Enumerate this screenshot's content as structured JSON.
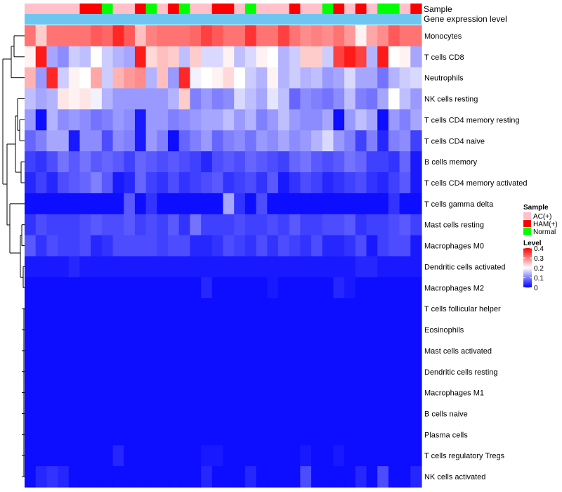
{
  "chart_data": {
    "type": "heatmap",
    "title": "",
    "annotations": {
      "sample_label": "Sample",
      "expression_label": "Gene expression level",
      "sample_groups": [
        "AC(+)",
        "AC(+)",
        "AC(+)",
        "AC(+)",
        "AC(+)",
        "HAM(+)",
        "HAM(+)",
        "Normal",
        "AC(+)",
        "AC(+)",
        "HAM(+)",
        "Normal",
        "AC(+)",
        "HAM(+)",
        "Normal",
        "AC(+)",
        "AC(+)",
        "HAM(+)",
        "HAM(+)",
        "AC(+)",
        "Normal",
        "AC(+)",
        "AC(+)",
        "AC(+)",
        "HAM(+)",
        "AC(+)",
        "AC(+)",
        "Normal",
        "HAM(+)",
        "AC(+)",
        "HAM(+)",
        "AC(+)",
        "Normal",
        "Normal",
        "AC(+)",
        "HAM(+)"
      ]
    },
    "rows": [
      "Monocytes",
      "T cells CD8",
      "Neutrophils",
      "NK cells resting",
      "T cells CD4 memory resting",
      "T cells CD4 naive",
      "B cells memory",
      "T cells CD4 memory activated",
      "T cells gamma delta",
      "Mast cells resting",
      "Macrophages M0",
      "Dendritic cells activated",
      "Macrophages M2",
      "T cells follicular helper",
      "Eosinophils",
      "Mast cells activated",
      "Dendritic cells resting",
      "Macrophages M1",
      "B cells naive",
      "Plasma cells",
      "T cells regulatory  Tregs",
      "NK cells activated"
    ],
    "values": [
      [
        0.31,
        0.24,
        0.31,
        0.31,
        0.31,
        0.31,
        0.33,
        0.32,
        0.37,
        0.33,
        0.25,
        0.3,
        0.31,
        0.31,
        0.31,
        0.32,
        0.35,
        0.33,
        0.31,
        0.31,
        0.36,
        0.31,
        0.31,
        0.35,
        0.31,
        0.29,
        0.3,
        0.29,
        0.31,
        0.28,
        0.21,
        0.27,
        0.29,
        0.33,
        0.31,
        0.31
      ],
      [
        0.21,
        0.38,
        0.13,
        0.11,
        0.16,
        0.15,
        0.2,
        0.16,
        0.14,
        0.13,
        0.38,
        0.23,
        0.25,
        0.24,
        0.15,
        0.24,
        0.17,
        0.17,
        0.21,
        0.15,
        0.17,
        0.21,
        0.2,
        0.14,
        0.16,
        0.24,
        0.24,
        0.16,
        0.35,
        0.38,
        0.35,
        0.14,
        0.38,
        0.2,
        0.21,
        0.13
      ],
      [
        0.26,
        0.12,
        0.37,
        0.16,
        0.21,
        0.2,
        0.27,
        0.16,
        0.26,
        0.28,
        0.29,
        0.14,
        0.25,
        0.12,
        0.37,
        0.19,
        0.2,
        0.21,
        0.23,
        0.2,
        0.16,
        0.14,
        0.21,
        0.14,
        0.16,
        0.14,
        0.15,
        0.12,
        0.13,
        0.17,
        0.13,
        0.13,
        0.09,
        0.14,
        0.16,
        0.17
      ],
      [
        0.15,
        0.13,
        0.14,
        0.22,
        0.21,
        0.22,
        0.19,
        0.14,
        0.12,
        0.12,
        0.12,
        0.12,
        0.12,
        0.14,
        0.24,
        0.1,
        0.12,
        0.1,
        0.11,
        0.17,
        0.15,
        0.13,
        0.18,
        0.15,
        0.08,
        0.11,
        0.1,
        0.09,
        0.11,
        0.15,
        0.1,
        0.09,
        0.13,
        0.2,
        0.15,
        0.12
      ],
      [
        0.12,
        0.01,
        0.14,
        0.11,
        0.12,
        0.11,
        0.09,
        0.1,
        0.12,
        0.11,
        0.02,
        0.12,
        0.12,
        0.1,
        0.11,
        0.12,
        0.13,
        0.13,
        0.15,
        0.12,
        0.14,
        0.1,
        0.12,
        0.15,
        0.12,
        0.11,
        0.11,
        0.13,
        0.01,
        0.12,
        0.15,
        0.13,
        0.01,
        0.12,
        0.1,
        0.13
      ],
      [
        0.08,
        0.1,
        0.13,
        0.13,
        0.02,
        0.11,
        0.11,
        0.06,
        0.11,
        0.1,
        0.02,
        0.12,
        0.1,
        0.01,
        0.08,
        0.1,
        0.12,
        0.08,
        0.1,
        0.11,
        0.09,
        0.12,
        0.11,
        0.13,
        0.11,
        0.12,
        0.14,
        0.17,
        0.12,
        0.1,
        0.05,
        0.1,
        0.03,
        0.1,
        0.11,
        0.05
      ],
      [
        0.05,
        0.04,
        0.06,
        0.09,
        0.07,
        0.09,
        0.07,
        0.08,
        0.07,
        0.05,
        0.08,
        0.07,
        0.06,
        0.07,
        0.06,
        0.05,
        0.03,
        0.06,
        0.07,
        0.06,
        0.08,
        0.07,
        0.06,
        0.05,
        0.08,
        0.09,
        0.07,
        0.06,
        0.07,
        0.09,
        0.08,
        0.05,
        0.05,
        0.04,
        0.08,
        0.02
      ],
      [
        0.03,
        0.05,
        0.03,
        0.06,
        0.07,
        0.08,
        0.1,
        0.07,
        0.02,
        0.03,
        0.08,
        0.05,
        0.04,
        0.06,
        0.04,
        0.05,
        0.06,
        0.07,
        0.04,
        0.05,
        0.06,
        0.04,
        0.07,
        0.02,
        0.04,
        0.06,
        0.05,
        0.03,
        0.04,
        0.05,
        0.06,
        0.04,
        0.03,
        0.05,
        0.07,
        0.02
      ],
      [
        0.01,
        0.01,
        0.01,
        0.01,
        0.01,
        0.01,
        0.01,
        0.01,
        0.01,
        0.07,
        0.01,
        0.04,
        0.01,
        0.01,
        0.01,
        0.01,
        0.01,
        0.01,
        0.13,
        0.04,
        0.01,
        0.06,
        0.01,
        0.01,
        0.01,
        0.01,
        0.01,
        0.01,
        0.01,
        0.01,
        0.01,
        0.01,
        0.01,
        0.04,
        0.01,
        0.01
      ],
      [
        0.04,
        0.06,
        0.05,
        0.05,
        0.05,
        0.06,
        0.07,
        0.06,
        0.06,
        0.07,
        0.05,
        0.06,
        0.05,
        0.07,
        0.04,
        0.09,
        0.05,
        0.05,
        0.05,
        0.06,
        0.05,
        0.05,
        0.06,
        0.05,
        0.07,
        0.05,
        0.05,
        0.06,
        0.06,
        0.07,
        0.04,
        0.05,
        0.05,
        0.06,
        0.07,
        0.05
      ],
      [
        0.07,
        0.04,
        0.06,
        0.05,
        0.05,
        0.06,
        0.03,
        0.04,
        0.06,
        0.06,
        0.06,
        0.06,
        0.05,
        0.06,
        0.06,
        0.03,
        0.03,
        0.04,
        0.06,
        0.05,
        0.04,
        0.06,
        0.04,
        0.06,
        0.05,
        0.04,
        0.06,
        0.03,
        0.03,
        0.04,
        0.06,
        0.02,
        0.05,
        0.06,
        0.06,
        0.02
      ],
      [
        0.02,
        0.02,
        0.02,
        0.02,
        0.03,
        0.02,
        0.02,
        0.02,
        0.02,
        0.02,
        0.02,
        0.02,
        0.02,
        0.02,
        0.02,
        0.02,
        0.02,
        0.02,
        0.02,
        0.02,
        0.02,
        0.02,
        0.02,
        0.02,
        0.02,
        0.02,
        0.02,
        0.02,
        0.02,
        0.02,
        0.03,
        0.03,
        0.02,
        0.02,
        0.02,
        0.02
      ],
      [
        0.01,
        0.01,
        0.01,
        0.01,
        0.01,
        0.01,
        0.01,
        0.01,
        0.01,
        0.01,
        0.01,
        0.01,
        0.01,
        0.01,
        0.01,
        0.01,
        0.03,
        0.01,
        0.01,
        0.01,
        0.01,
        0.01,
        0.02,
        0.01,
        0.01,
        0.01,
        0.01,
        0.01,
        0.03,
        0.02,
        0.01,
        0.01,
        0.01,
        0.01,
        0.01,
        0.01
      ],
      [
        0.01,
        0.01,
        0.01,
        0.01,
        0.01,
        0.01,
        0.01,
        0.01,
        0.01,
        0.01,
        0.01,
        0.01,
        0.01,
        0.01,
        0.01,
        0.01,
        0.01,
        0.01,
        0.01,
        0.01,
        0.01,
        0.01,
        0.01,
        0.01,
        0.01,
        0.01,
        0.01,
        0.01,
        0.01,
        0.01,
        0.01,
        0.01,
        0.01,
        0.01,
        0.01,
        0.01
      ],
      [
        0.01,
        0.01,
        0.01,
        0.01,
        0.01,
        0.01,
        0.01,
        0.01,
        0.01,
        0.01,
        0.01,
        0.01,
        0.01,
        0.01,
        0.01,
        0.01,
        0.01,
        0.01,
        0.01,
        0.01,
        0.01,
        0.01,
        0.01,
        0.01,
        0.01,
        0.01,
        0.01,
        0.01,
        0.01,
        0.01,
        0.01,
        0.01,
        0.01,
        0.01,
        0.01,
        0.01
      ],
      [
        0.01,
        0.01,
        0.01,
        0.01,
        0.01,
        0.01,
        0.01,
        0.01,
        0.01,
        0.01,
        0.01,
        0.01,
        0.01,
        0.01,
        0.01,
        0.01,
        0.01,
        0.01,
        0.01,
        0.01,
        0.01,
        0.01,
        0.01,
        0.01,
        0.01,
        0.01,
        0.01,
        0.01,
        0.01,
        0.01,
        0.01,
        0.01,
        0.01,
        0.01,
        0.01,
        0.01
      ],
      [
        0.01,
        0.01,
        0.01,
        0.01,
        0.01,
        0.01,
        0.01,
        0.01,
        0.01,
        0.01,
        0.01,
        0.01,
        0.01,
        0.01,
        0.01,
        0.01,
        0.01,
        0.01,
        0.01,
        0.01,
        0.01,
        0.01,
        0.01,
        0.01,
        0.01,
        0.01,
        0.01,
        0.01,
        0.01,
        0.01,
        0.01,
        0.01,
        0.01,
        0.01,
        0.01,
        0.01
      ],
      [
        0.01,
        0.01,
        0.01,
        0.01,
        0.01,
        0.01,
        0.01,
        0.01,
        0.01,
        0.01,
        0.01,
        0.01,
        0.01,
        0.01,
        0.01,
        0.01,
        0.01,
        0.01,
        0.01,
        0.01,
        0.01,
        0.01,
        0.01,
        0.01,
        0.01,
        0.01,
        0.01,
        0.01,
        0.01,
        0.01,
        0.01,
        0.01,
        0.01,
        0.01,
        0.01,
        0.01
      ],
      [
        0.01,
        0.01,
        0.01,
        0.01,
        0.01,
        0.01,
        0.01,
        0.01,
        0.01,
        0.01,
        0.01,
        0.01,
        0.01,
        0.01,
        0.01,
        0.01,
        0.01,
        0.01,
        0.01,
        0.01,
        0.01,
        0.01,
        0.01,
        0.01,
        0.01,
        0.01,
        0.01,
        0.01,
        0.01,
        0.01,
        0.01,
        0.01,
        0.01,
        0.01,
        0.01,
        0.01
      ],
      [
        0.01,
        0.01,
        0.01,
        0.01,
        0.01,
        0.01,
        0.01,
        0.01,
        0.01,
        0.01,
        0.01,
        0.01,
        0.01,
        0.01,
        0.01,
        0.01,
        0.01,
        0.01,
        0.01,
        0.01,
        0.01,
        0.01,
        0.01,
        0.01,
        0.01,
        0.01,
        0.01,
        0.01,
        0.01,
        0.01,
        0.01,
        0.01,
        0.01,
        0.01,
        0.01,
        0.01
      ],
      [
        0.01,
        0.01,
        0.01,
        0.01,
        0.01,
        0.01,
        0.01,
        0.01,
        0.03,
        0.01,
        0.01,
        0.01,
        0.01,
        0.01,
        0.01,
        0.01,
        0.02,
        0.02,
        0.01,
        0.01,
        0.01,
        0.01,
        0.01,
        0.01,
        0.01,
        0.02,
        0.01,
        0.01,
        0.02,
        0.01,
        0.01,
        0.01,
        0.01,
        0.01,
        0.01,
        0.01
      ],
      [
        0.01,
        0.03,
        0.04,
        0.03,
        0.01,
        0.01,
        0.01,
        0.01,
        0.01,
        0.01,
        0.01,
        0.01,
        0.01,
        0.01,
        0.01,
        0.01,
        0.03,
        0.01,
        0.01,
        0.01,
        0.03,
        0.01,
        0.01,
        0.01,
        0.01,
        0.06,
        0.01,
        0.01,
        0.01,
        0.01,
        0.03,
        0.01,
        0.06,
        0.01,
        0.01,
        0.03
      ]
    ],
    "color_scale": {
      "low": "#0000ff",
      "mid": "#ffffff",
      "high": "#ff0000",
      "domain": [
        0,
        0.2,
        0.4
      ]
    },
    "legend": {
      "sample_title": "Sample",
      "sample_entries": [
        {
          "label": "AC(+)",
          "color": "#ffc0cb"
        },
        {
          "label": "HAM(+)",
          "color": "#ff0000"
        },
        {
          "label": "Normal",
          "color": "#00ff00"
        }
      ],
      "level_title": "Level",
      "level_ticks": [
        "0.4",
        "0.3",
        "0.2",
        "0.1",
        "0"
      ],
      "level_tick_values": [
        0.4,
        0.3,
        0.2,
        0.1,
        0
      ],
      "position": "right"
    },
    "expression_bar_color": "#6ec6f0",
    "dendrogram": "rows"
  }
}
